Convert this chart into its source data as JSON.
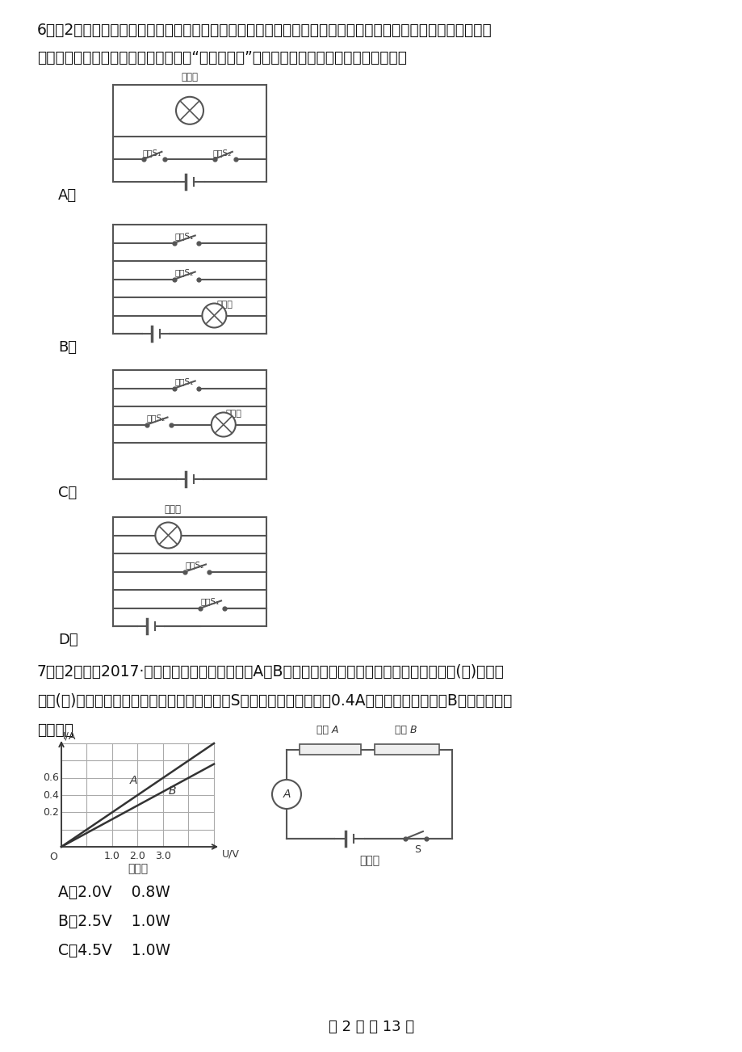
{
  "bg_color": "#ffffff",
  "text_color": "#333333",
  "q6_text1": "6．（2分）火车某节车厢有两间洗手间，只有当两间洗手间的门都关上时（每扇门的插销都相当于一个开关），",
  "q6_text2": "车厢内指示牌内的指示灯才会提示旅客“洗手间有人”．能实现上述设计的电路图是（　　）",
  "q7_text1": "7．（2分）（2017·深圳模拟）有两个电路元件A和B，流过元件的电流与其两端电压的关系如图(甲)所示。",
  "q7_text2": "如图(乙)所示，把它们串联在电路中，闭合开关S，这时电流表的示数为0.4A，则电源电压和元件B的电功率分别",
  "q7_text3": "是（　）",
  "answer_A1": "A．2.0V    0.8W",
  "answer_B1": "B．2.5V    1.0W",
  "answer_C1": "C．4.5V    1.0W",
  "page_footer": "第 2 页 共 13 页"
}
